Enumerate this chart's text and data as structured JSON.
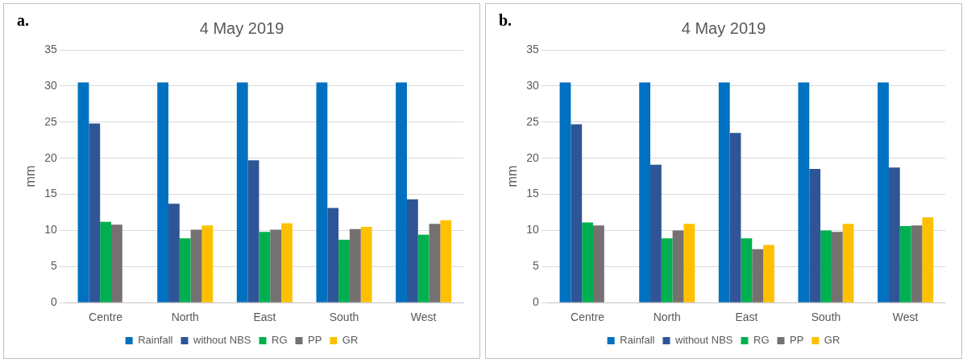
{
  "chart_data": [
    {
      "type": "bar",
      "title": "4 May 2019",
      "ylabel": "mm",
      "annotations": [
        "a."
      ],
      "categories": [
        "Centre",
        "North",
        "East",
        "South",
        "West"
      ],
      "series": [
        {
          "name": "Rainfall",
          "color": "#0070c0",
          "values": [
            30.5,
            30.5,
            30.5,
            30.5,
            30.5
          ]
        },
        {
          "name": "without NBS",
          "color": "#2f5597",
          "values": [
            24.8,
            13.7,
            19.7,
            13.1,
            14.3
          ]
        },
        {
          "name": "RG",
          "color": "#00b050",
          "values": [
            11.2,
            8.9,
            9.8,
            8.7,
            9.4
          ]
        },
        {
          "name": "PP",
          "color": "#767171",
          "values": [
            10.8,
            10.1,
            10.1,
            10.2,
            10.9
          ]
        },
        {
          "name": "GR",
          "color": "#ffc000",
          "values": [
            null,
            10.7,
            11.0,
            10.5,
            11.4
          ]
        }
      ],
      "ylim": [
        0,
        35
      ],
      "yticks": [
        0,
        5,
        10,
        15,
        20,
        25,
        30,
        35
      ],
      "grid": "y",
      "legend": "bottom"
    },
    {
      "type": "bar",
      "title": "4 May 2019",
      "ylabel": "mm",
      "annotations": [
        "b."
      ],
      "categories": [
        "Centre",
        "North",
        "East",
        "South",
        "West"
      ],
      "series": [
        {
          "name": "Rainfall",
          "color": "#0070c0",
          "values": [
            30.5,
            30.5,
            30.5,
            30.5,
            30.5
          ]
        },
        {
          "name": "without NBS",
          "color": "#2f5597",
          "values": [
            24.7,
            19.1,
            23.5,
            18.5,
            18.7
          ]
        },
        {
          "name": "RG",
          "color": "#00b050",
          "values": [
            11.1,
            8.9,
            8.9,
            10.0,
            10.6
          ]
        },
        {
          "name": "PP",
          "color": "#767171",
          "values": [
            10.7,
            10.0,
            7.4,
            9.8,
            10.7
          ]
        },
        {
          "name": "GR",
          "color": "#ffc000",
          "values": [
            null,
            10.9,
            8.0,
            10.9,
            11.8
          ]
        }
      ],
      "ylim": [
        0,
        35
      ],
      "yticks": [
        0,
        5,
        10,
        15,
        20,
        25,
        30,
        35
      ],
      "grid": "y",
      "legend": "bottom"
    }
  ]
}
